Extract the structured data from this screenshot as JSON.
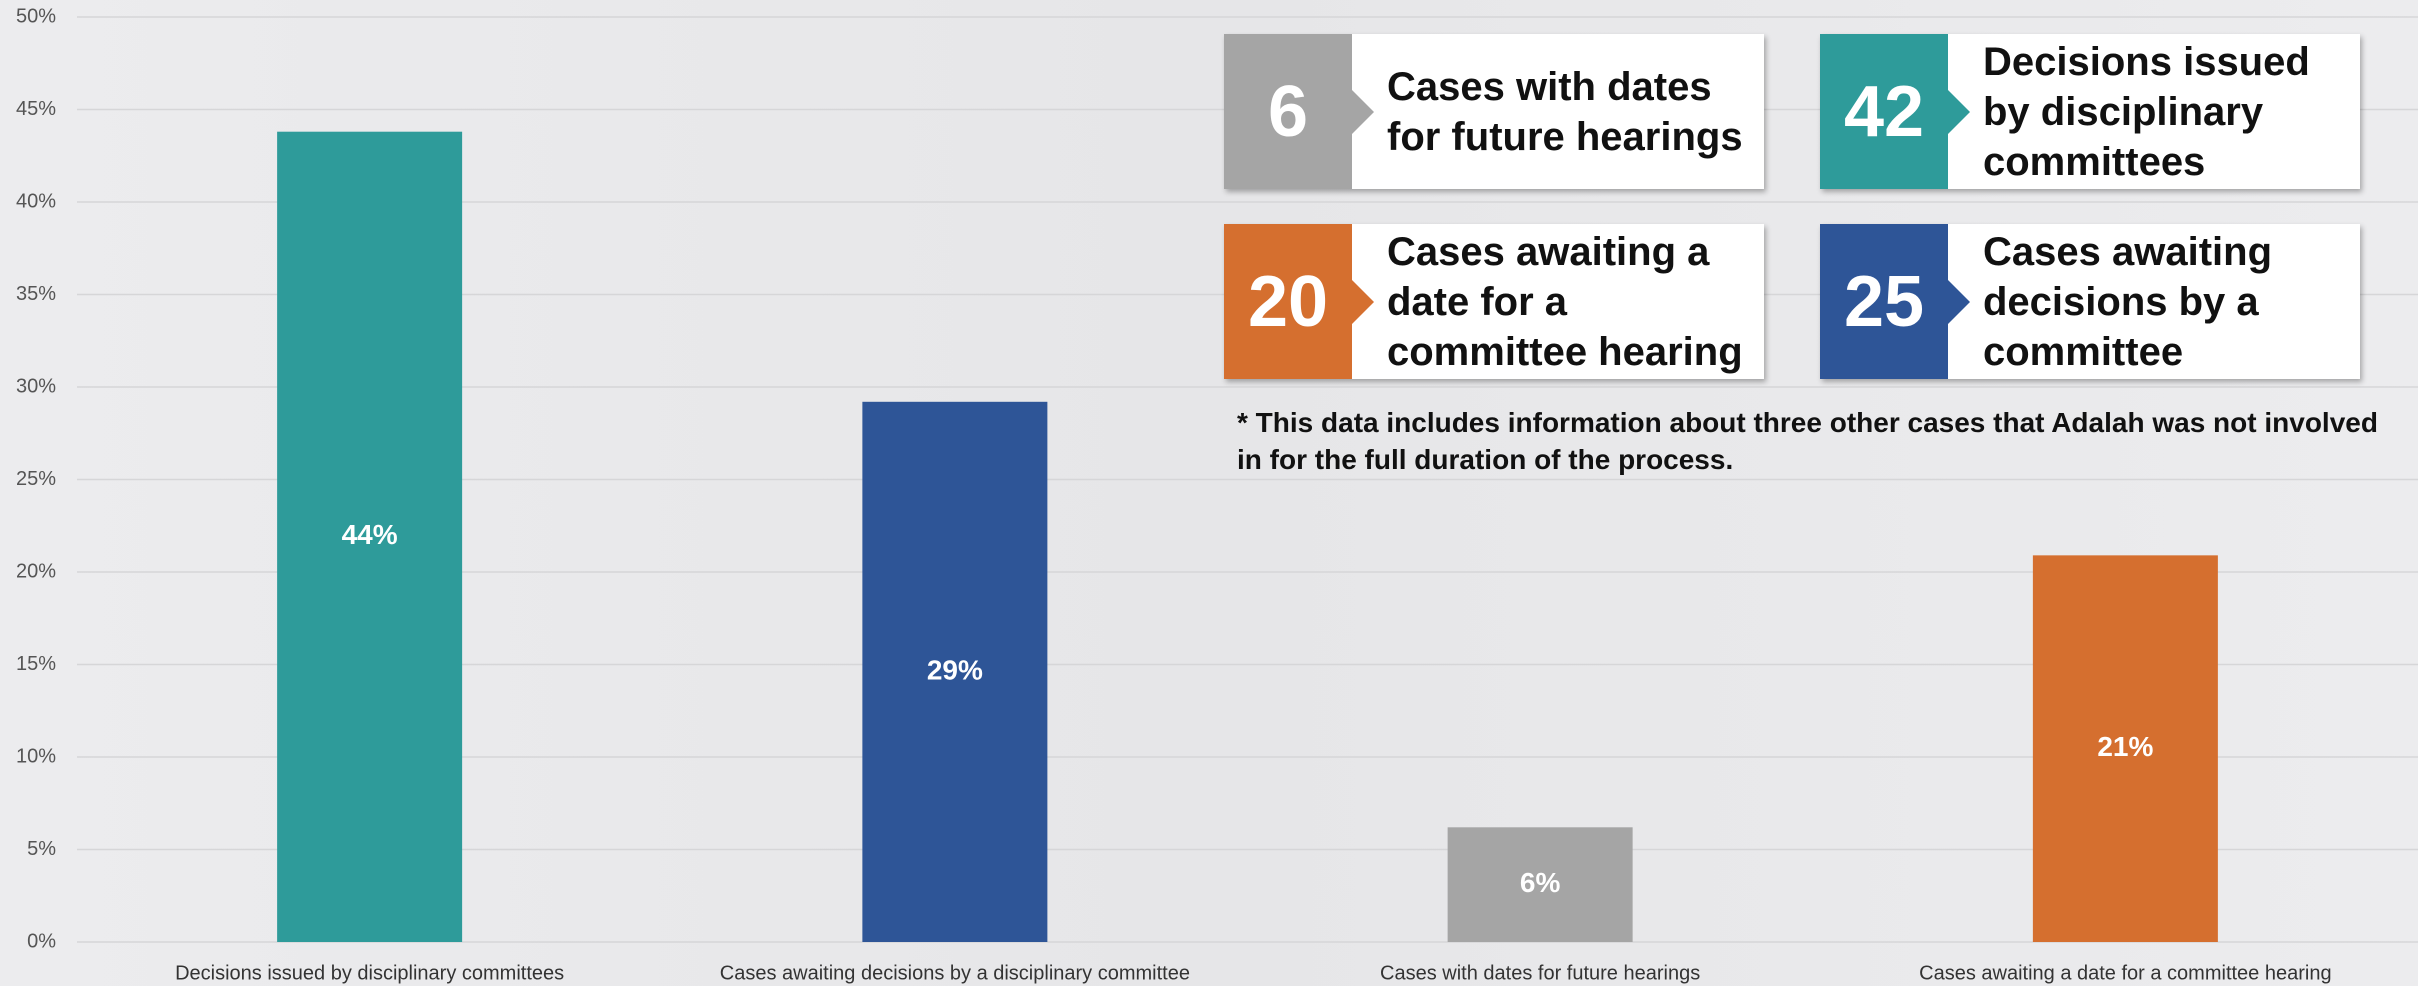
{
  "chart_data": {
    "type": "bar",
    "categories": [
      "Decisions issued by disciplinary committees",
      "Cases awaiting decisions by a disciplinary committee",
      "Cases with dates for future hearings",
      "Cases awaiting a date for a committee hearing"
    ],
    "values": [
      43.8,
      29.2,
      6.2,
      20.9
    ],
    "value_labels": [
      "44%",
      "29%",
      "6%",
      "21%"
    ],
    "colors": [
      "#2e9b9a",
      "#2e5597",
      "#a5a5a5",
      "#d56f2f"
    ],
    "ylim": [
      0,
      50
    ],
    "yticks": [
      {
        "value": 0,
        "label": "0%"
      },
      {
        "value": 5,
        "label": "5%"
      },
      {
        "value": 10,
        "label": "10%"
      },
      {
        "value": 15,
        "label": "15%"
      },
      {
        "value": 20,
        "label": "20%"
      },
      {
        "value": 25,
        "label": "25%"
      },
      {
        "value": 30,
        "label": "30%"
      },
      {
        "value": 35,
        "label": "35%"
      },
      {
        "value": 40,
        "label": "40%"
      },
      {
        "value": 45,
        "label": "45%"
      },
      {
        "value": 50,
        "label": "50%"
      }
    ],
    "grid": true,
    "cards": [
      {
        "number": 6,
        "text": "Cases with dates for future hearings",
        "color": "#a5a5a5"
      },
      {
        "number": 42,
        "text": "Decisions issued by disciplinary committees",
        "color": "#2e9b9a"
      },
      {
        "number": 20,
        "text": "Cases awaiting a date for a committee hearing",
        "color": "#d56f2f"
      },
      {
        "number": 25,
        "text": "Cases awaiting decisions by a committee",
        "color": "#2e5597"
      }
    ],
    "note": "* This data includes information about three other cases that Adalah was not involved in for the full duration of the process."
  }
}
